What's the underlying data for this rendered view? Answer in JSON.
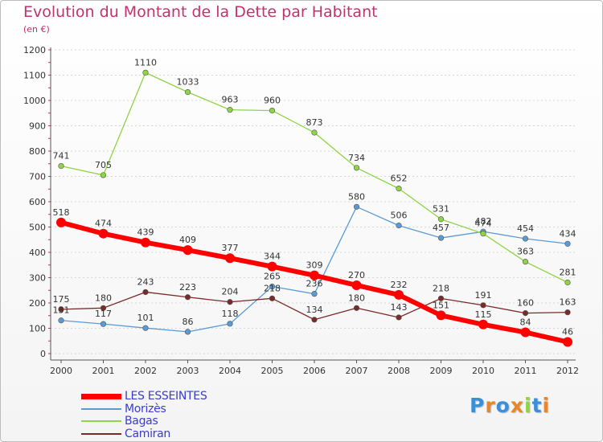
{
  "chart_data": {
    "type": "line",
    "title": "Evolution du Montant de la Dette par Habitant",
    "subtitle": "(en €)",
    "x": [
      "2000",
      "2001",
      "2002",
      "2003",
      "2004",
      "2005",
      "2006",
      "2007",
      "2008",
      "2009",
      "2010",
      "2011",
      "2012"
    ],
    "ylim": [
      0,
      1200
    ],
    "yticks": [
      "0",
      "100",
      "200",
      "300",
      "400",
      "500",
      "600",
      "700",
      "800",
      "900",
      "1000",
      "1100",
      "1200"
    ],
    "grid": "horizontal dashed",
    "legend_position": "bottom-left",
    "series": [
      {
        "name": "LES ESSEINTES",
        "color": "#ff0000",
        "values": [
          518,
          474,
          439,
          409,
          377,
          344,
          309,
          270,
          232,
          151,
          115,
          84,
          46
        ]
      },
      {
        "name": "Morizès",
        "color": "#5b9bd5",
        "values": [
          131,
          117,
          101,
          86,
          118,
          265,
          236,
          580,
          506,
          457,
          482,
          454,
          434
        ]
      },
      {
        "name": "Bagas",
        "color": "#8fd444",
        "values": [
          741,
          705,
          1110,
          1033,
          963,
          960,
          873,
          734,
          652,
          531,
          474,
          363,
          281
        ]
      },
      {
        "name": "Camiran",
        "color": "#7b2a2a",
        "values": [
          175,
          180,
          243,
          223,
          204,
          218,
          134,
          180,
          143,
          218,
          191,
          160,
          163
        ]
      }
    ]
  },
  "logo": {
    "letters": [
      "P",
      "r",
      "o",
      "x",
      "i",
      "t",
      "i"
    ],
    "colors": [
      "#3a8fd8",
      "#e8862a",
      "#3a8fd8",
      "#e8862a",
      "#8fd444",
      "#3a8fd8",
      "#e8862a"
    ]
  }
}
